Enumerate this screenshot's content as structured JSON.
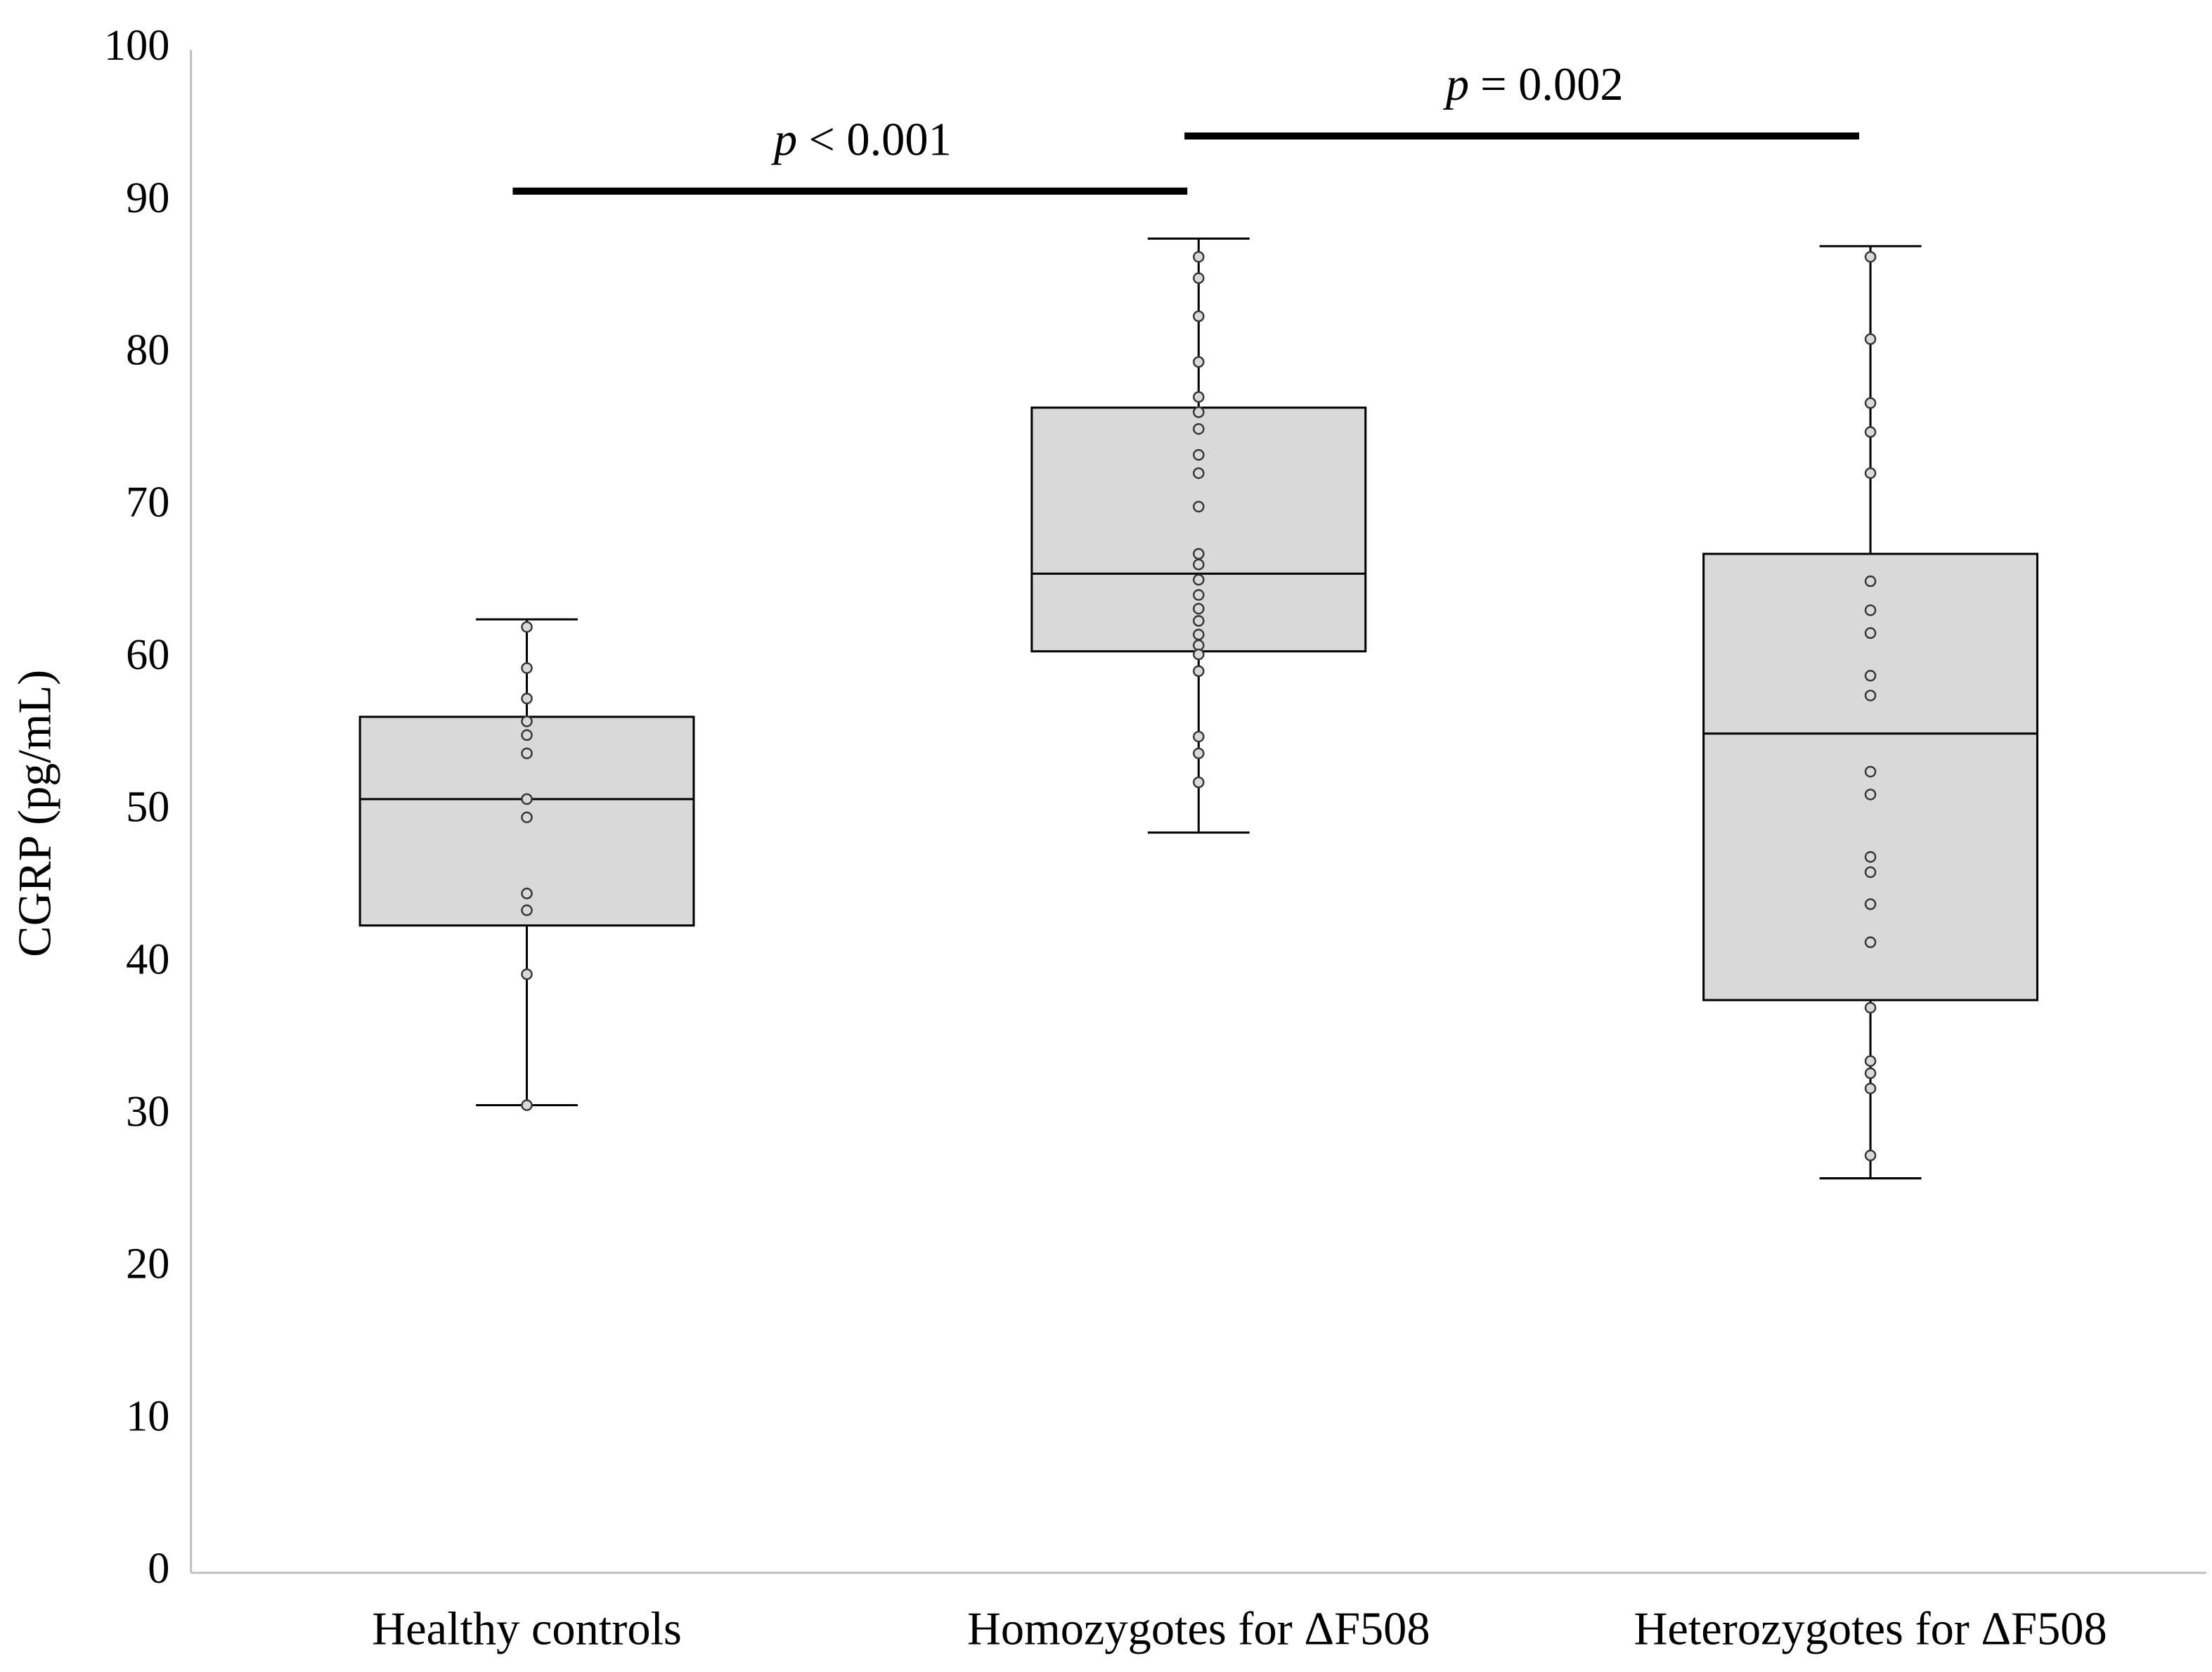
{
  "chart_data": {
    "type": "box",
    "y_label": "CGRP (pg/mL)",
    "categories": [
      "Healthy controls",
      "Homozygotes for ΔF508",
      "Heterozygotes for ΔF508"
    ],
    "boxes": [
      {
        "whislo": 30.7,
        "q1": 42.5,
        "med": 50.8,
        "q3": 56.2,
        "whishi": 62.6,
        "points": [
          62.1,
          59.4,
          57.4,
          55.9,
          55.0,
          53.8,
          50.8,
          49.6,
          44.6,
          43.5,
          39.3,
          30.7
        ]
      },
      {
        "whislo": 48.6,
        "q1": 60.5,
        "med": 65.6,
        "q3": 76.5,
        "whishi": 87.6,
        "points": [
          86.4,
          85.0,
          82.5,
          79.5,
          77.2,
          76.2,
          75.1,
          73.4,
          72.2,
          70.0,
          66.9,
          66.2,
          65.2,
          64.2,
          63.3,
          62.5,
          61.6,
          60.9,
          60.3,
          59.2,
          54.9,
          53.8,
          51.9
        ]
      },
      {
        "whislo": 25.9,
        "q1": 37.6,
        "med": 55.1,
        "q3": 66.9,
        "whishi": 87.1,
        "points": [
          86.4,
          81.0,
          76.8,
          74.9,
          72.2,
          65.1,
          63.2,
          61.7,
          58.9,
          57.6,
          52.6,
          51.1,
          47.0,
          46.0,
          43.9,
          41.4,
          37.1,
          33.6,
          32.8,
          31.8,
          27.4
        ]
      }
    ],
    "box_color": "#d9d9d9",
    "ylim": [
      0,
      100
    ],
    "yticks": [
      0,
      10,
      20,
      30,
      40,
      50,
      60,
      70,
      80,
      90,
      100
    ],
    "grid": false,
    "annotations": [
      {
        "italic": "p",
        "text": "< 0.001",
        "from": 0,
        "to": 1
      },
      {
        "italic": "p",
        "text": "= 0.002",
        "from": 1,
        "to": 2
      }
    ]
  }
}
